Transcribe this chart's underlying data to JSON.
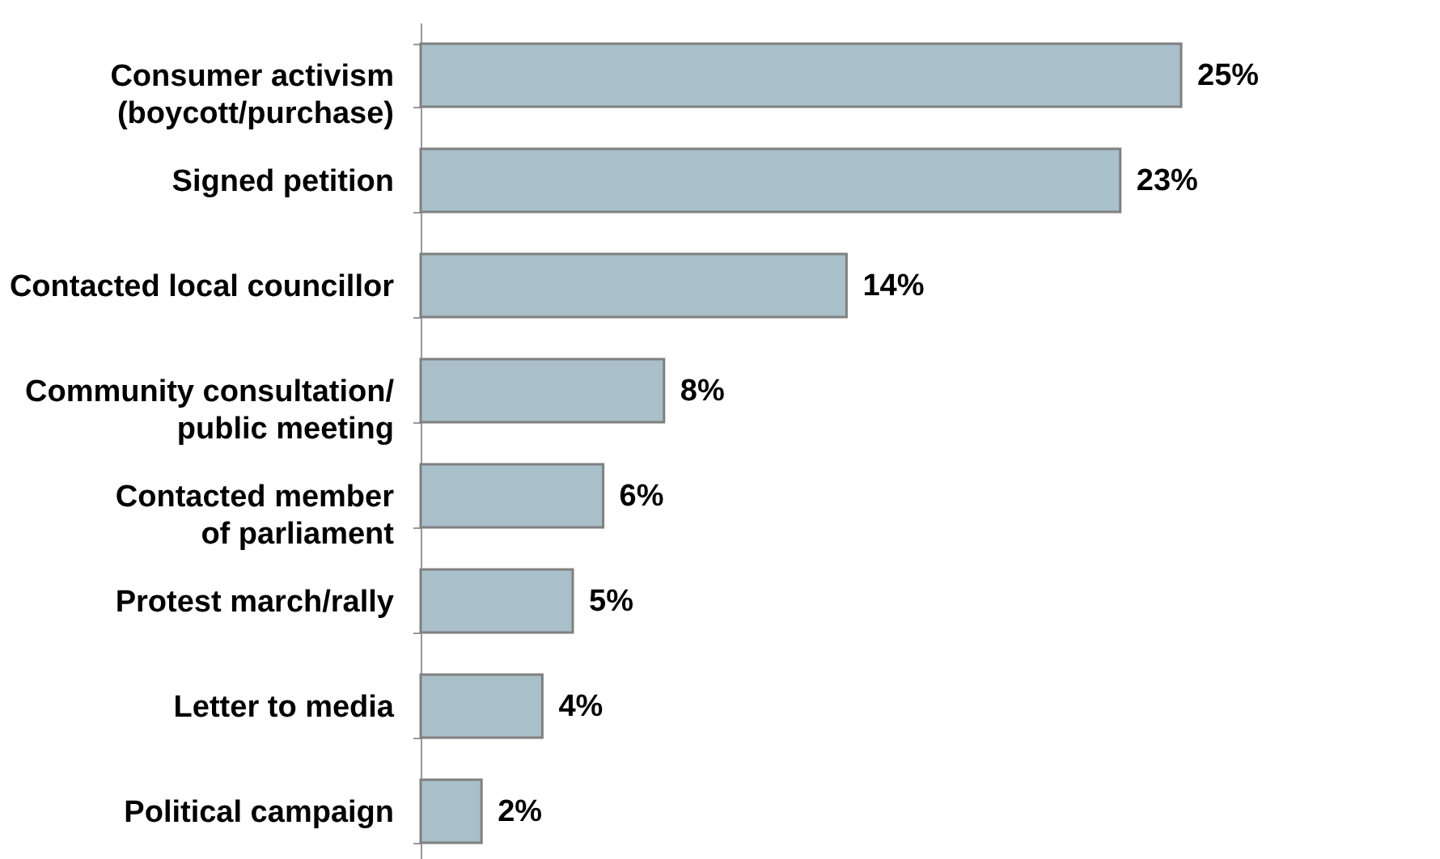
{
  "chart_data": {
    "type": "bar",
    "orientation": "horizontal",
    "categories": [
      "Consumer activism\n(boycott/purchase)",
      "Signed petition",
      "Contacted local councillor",
      "Community consultation/\npublic meeting",
      "Contacted member\nof parliament",
      "Protest march/rally",
      "Letter to media",
      "Political campaign"
    ],
    "values": [
      25,
      23,
      14,
      8,
      6,
      5,
      4,
      2
    ],
    "value_labels": [
      "25%",
      "23%",
      "14%",
      "8%",
      "6%",
      "5%",
      "4%",
      "2%"
    ],
    "color": "#a9bfc9",
    "grid": false
  }
}
